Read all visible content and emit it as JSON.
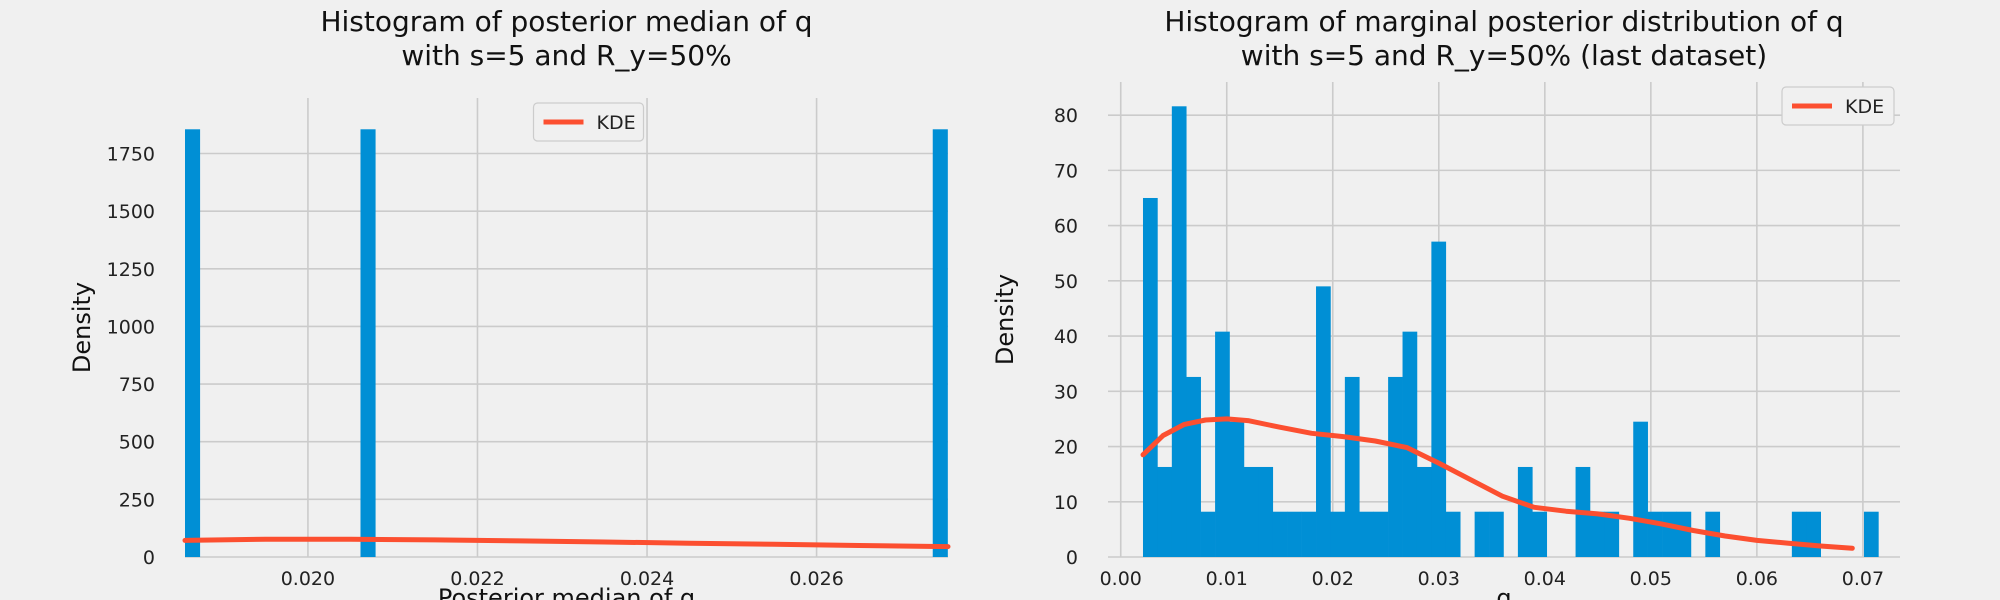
{
  "chart_data": [
    {
      "type": "bar",
      "title_line1": "Histogram of posterior median of q",
      "title_line2": "with s=5 and R_y=50%",
      "xlabel": "Posterior median of q",
      "ylabel": "Density",
      "xlim": [
        0.01855,
        0.02755
      ],
      "ylim": [
        0,
        1930
      ],
      "xticks": [
        0.02,
        0.022,
        0.024,
        0.026
      ],
      "xtick_labels": [
        "0.020",
        "0.022",
        "0.024",
        "0.026"
      ],
      "yticks": [
        0,
        250,
        500,
        750,
        1000,
        1250,
        1500,
        1750
      ],
      "ytick_labels": [
        "0",
        "250",
        "500",
        "750",
        "1000",
        "1250",
        "1500",
        "1750"
      ],
      "bin_width": 0.000178,
      "bars": [
        {
          "x": 0.01855,
          "value": 1855
        },
        {
          "x": 0.02062,
          "value": 1855
        },
        {
          "x": 0.02737,
          "value": 1855
        }
      ],
      "kde_series": {
        "name": "KDE",
        "x": [
          0.01855,
          0.0195,
          0.0205,
          0.0215,
          0.0225,
          0.0235,
          0.0245,
          0.0255,
          0.0265,
          0.02755
        ],
        "y": [
          72,
          77,
          77,
          74,
          70,
          65,
          60,
          55,
          50,
          45
        ]
      },
      "legend": {
        "label": "KDE",
        "placement": "top-center"
      },
      "bar_color": "#008fd5",
      "kde_color": "#fc4f30",
      "grid": true
    },
    {
      "type": "bar",
      "title_line1": "Histogram of marginal posterior distribution of q",
      "title_line2": "with s=5 and R_y=50% (last dataset)",
      "xlabel": "q",
      "ylabel": "Density",
      "xlim": [
        -0.0012,
        0.0735
      ],
      "ylim": [
        0,
        86
      ],
      "xticks": [
        0.0,
        0.01,
        0.02,
        0.03,
        0.04,
        0.05,
        0.06,
        0.07
      ],
      "xtick_labels": [
        "0.00",
        "0.01",
        "0.02",
        "0.03",
        "0.04",
        "0.05",
        "0.06",
        "0.07"
      ],
      "yticks": [
        0,
        10,
        20,
        30,
        40,
        50,
        60,
        70,
        80
      ],
      "ytick_labels": [
        "0",
        "10",
        "20",
        "30",
        "40",
        "50",
        "60",
        "70",
        "80"
      ],
      "bin_start": 0.0021,
      "bin_width": 0.00136,
      "values": [
        65,
        16.3,
        81.6,
        32.6,
        8.2,
        40.8,
        24.5,
        16.3,
        16.3,
        8.2,
        8.2,
        8.2,
        49,
        8.2,
        32.6,
        8.2,
        8.2,
        32.6,
        40.8,
        16.3,
        57.1,
        8.2,
        0,
        8.2,
        8.2,
        0,
        16.3,
        8.2,
        0,
        0,
        16.3,
        8.2,
        8.2,
        0,
        24.5,
        8.2,
        8.2,
        8.2,
        0,
        8.2,
        0,
        0,
        0,
        0,
        0,
        8.2,
        8.2,
        0,
        0,
        0,
        8.2
      ],
      "kde_series": {
        "name": "KDE",
        "x": [
          0.0021,
          0.004,
          0.006,
          0.008,
          0.01,
          0.012,
          0.015,
          0.018,
          0.021,
          0.024,
          0.027,
          0.03,
          0.033,
          0.036,
          0.039,
          0.042,
          0.045,
          0.048,
          0.051,
          0.054,
          0.057,
          0.06,
          0.063,
          0.066,
          0.069
        ],
        "y": [
          18.5,
          22,
          24,
          24.8,
          25,
          24.7,
          23.5,
          22.4,
          21.8,
          21,
          19.8,
          17,
          14,
          11,
          9,
          8.3,
          7.8,
          7,
          6,
          4.8,
          3.8,
          3,
          2.5,
          2,
          1.6
        ]
      },
      "legend": {
        "label": "KDE",
        "placement": "top-right"
      },
      "bar_color": "#008fd5",
      "kde_color": "#fc4f30",
      "grid": true
    }
  ]
}
